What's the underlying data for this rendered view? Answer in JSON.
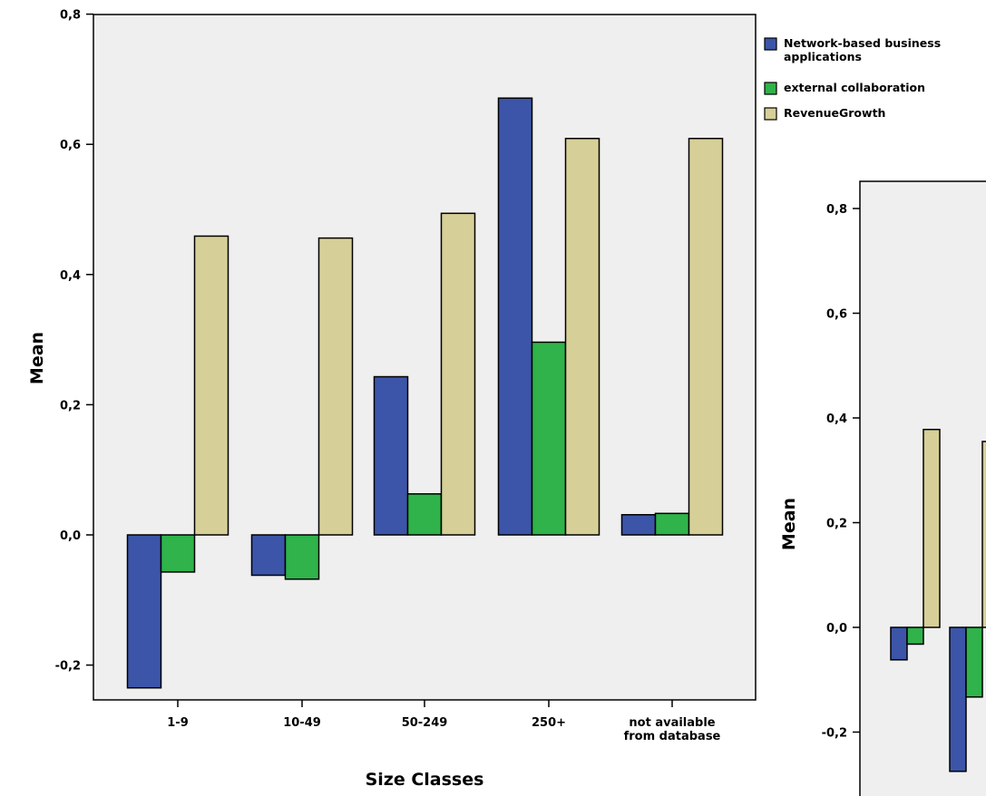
{
  "chart_data": [
    {
      "type": "bar",
      "xlabel": "Size Classes",
      "ylabel": "Mean",
      "ylim": [
        -0.2,
        0.8
      ],
      "yticks": [
        "-0,2",
        "0,0",
        "0,2",
        "0,4",
        "0,6",
        "0,8"
      ],
      "grid": false,
      "legend_position": "top-right",
      "categories": [
        "1-9",
        "10-49",
        "50-249",
        "250+",
        "not available|from database"
      ],
      "series": [
        {
          "name": "Network-based business applications",
          "color": "#3c55a8",
          "values": [
            -0.235,
            -0.062,
            0.243,
            0.671,
            0.031
          ]
        },
        {
          "name": "external collaboration",
          "color": "#2fb34a",
          "values": [
            -0.057,
            -0.068,
            0.063,
            0.296,
            0.033
          ]
        },
        {
          "name": "RevenueGrowth",
          "color": "#d6cf98",
          "values": [
            0.459,
            0.456,
            0.494,
            0.609,
            0.609
          ]
        }
      ]
    },
    {
      "type": "bar",
      "ylabel": "Mean",
      "ylim": [
        -0.2,
        0.8
      ],
      "yticks": [
        "-0,2",
        "0,0",
        "0,2",
        "0,4",
        "0,6",
        "0,8"
      ],
      "grid": false,
      "series": [
        {
          "color": "#3c55a8",
          "values": [
            -0.062,
            -0.275
          ]
        },
        {
          "color": "#2fb34a",
          "values": [
            -0.032,
            -0.133
          ]
        },
        {
          "color": "#d6cf98",
          "values": [
            0.378,
            0.355
          ]
        }
      ]
    }
  ]
}
